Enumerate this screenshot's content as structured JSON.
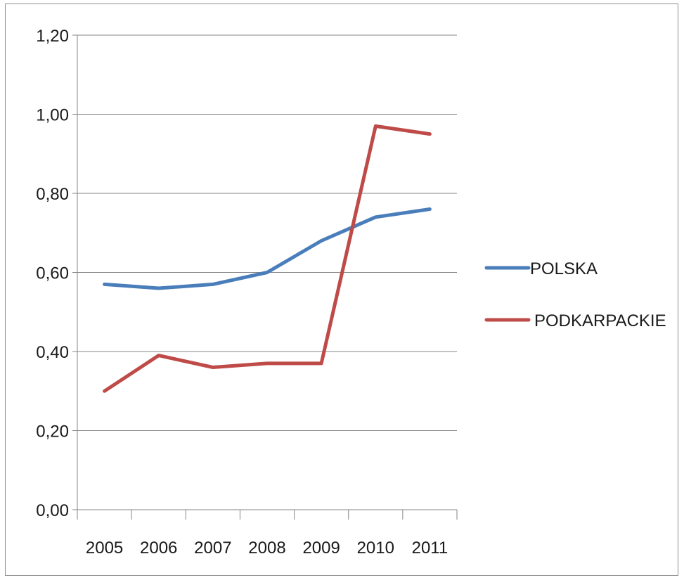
{
  "chart_data": {
    "type": "line",
    "categories": [
      "2005",
      "2006",
      "2007",
      "2008",
      "2009",
      "2010",
      "2011"
    ],
    "series": [
      {
        "name": "POLSKA",
        "color": "#4a7ebb",
        "values": [
          0.57,
          0.56,
          0.57,
          0.6,
          0.68,
          0.74,
          0.76
        ]
      },
      {
        "name": "PODKARPACKIE",
        "color": "#be4b48",
        "values": [
          0.3,
          0.39,
          0.36,
          0.37,
          0.37,
          0.97,
          0.95
        ]
      }
    ],
    "ylim": [
      0,
      1.2
    ],
    "yticks": [
      0,
      0.2,
      0.4,
      0.6,
      0.8,
      1.0,
      1.2
    ],
    "ytick_labels": [
      "0,00",
      "0,20",
      "0,40",
      "0,60",
      "0,80",
      "1,00",
      "1,20"
    ],
    "grid": true,
    "legend_position": "right"
  }
}
